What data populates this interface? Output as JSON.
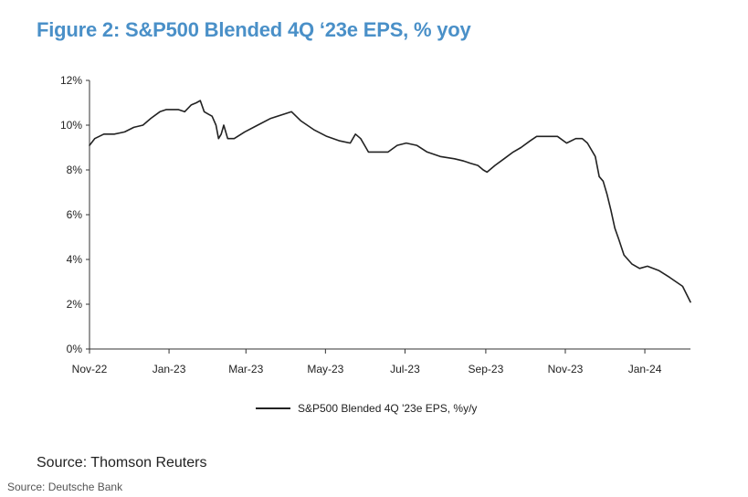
{
  "title": "Figure 2: S&P500 Blended 4Q ‘23e EPS, % yoy",
  "source_text": "Source: Thomson Reuters",
  "footer_text": "Source: Deutsche Bank",
  "colors": {
    "title": "#4a90c8",
    "line": "#222222",
    "axis": "#333333"
  },
  "chart_data": {
    "type": "line",
    "title": "Figure 2: S&P500 Blended 4Q ‘23e EPS, % yoy",
    "xlabel": "",
    "ylabel": "",
    "y_unit": "%",
    "ylim": [
      0,
      12
    ],
    "yticks": [
      0,
      2,
      4,
      6,
      8,
      10,
      12
    ],
    "ytick_labels": [
      "0%",
      "2%",
      "4%",
      "6%",
      "8%",
      "10%",
      "12%"
    ],
    "xlim": [
      "2022-11-01",
      "2024-02-05"
    ],
    "xticks": [
      "2022-11-01",
      "2023-01-01",
      "2023-03-01",
      "2023-05-01",
      "2023-07-01",
      "2023-09-01",
      "2023-11-01",
      "2024-01-01"
    ],
    "xtick_labels": [
      "Nov-22",
      "Jan-23",
      "Mar-23",
      "May-23",
      "Jul-23",
      "Sep-23",
      "Nov-23",
      "Jan-24"
    ],
    "grid": false,
    "legend": "bottom-center",
    "series": [
      {
        "name": "S&P500 Blended 4Q '23e EPS, %y/y",
        "points": [
          [
            "2022-11-01",
            9.1
          ],
          [
            "2022-11-05",
            9.4
          ],
          [
            "2022-11-12",
            9.6
          ],
          [
            "2022-11-20",
            9.6
          ],
          [
            "2022-11-28",
            9.7
          ],
          [
            "2022-12-05",
            9.9
          ],
          [
            "2022-12-12",
            10.0
          ],
          [
            "2022-12-18",
            10.3
          ],
          [
            "2022-12-25",
            10.6
          ],
          [
            "2022-12-30",
            10.7
          ],
          [
            "2023-01-08",
            10.7
          ],
          [
            "2023-01-13",
            10.6
          ],
          [
            "2023-01-18",
            10.9
          ],
          [
            "2023-01-22",
            11.0
          ],
          [
            "2023-01-25",
            11.1
          ],
          [
            "2023-01-28",
            10.6
          ],
          [
            "2023-01-31",
            10.5
          ],
          [
            "2023-02-03",
            10.4
          ],
          [
            "2023-02-06",
            10.0
          ],
          [
            "2023-02-08",
            9.4
          ],
          [
            "2023-02-10",
            9.6
          ],
          [
            "2023-02-12",
            10.0
          ],
          [
            "2023-02-15",
            9.4
          ],
          [
            "2023-02-20",
            9.4
          ],
          [
            "2023-02-28",
            9.7
          ],
          [
            "2023-03-10",
            10.0
          ],
          [
            "2023-03-20",
            10.3
          ],
          [
            "2023-04-05",
            10.6
          ],
          [
            "2023-04-12",
            10.2
          ],
          [
            "2023-04-22",
            9.8
          ],
          [
            "2023-05-02",
            9.5
          ],
          [
            "2023-05-12",
            9.3
          ],
          [
            "2023-05-20",
            9.2
          ],
          [
            "2023-05-24",
            9.6
          ],
          [
            "2023-05-28",
            9.4
          ],
          [
            "2023-06-01",
            9.0
          ],
          [
            "2023-06-03",
            8.8
          ],
          [
            "2023-06-10",
            8.8
          ],
          [
            "2023-06-18",
            8.8
          ],
          [
            "2023-06-25",
            9.1
          ],
          [
            "2023-07-02",
            9.2
          ],
          [
            "2023-07-10",
            9.1
          ],
          [
            "2023-07-18",
            8.8
          ],
          [
            "2023-07-28",
            8.6
          ],
          [
            "2023-08-08",
            8.5
          ],
          [
            "2023-08-15",
            8.4
          ],
          [
            "2023-08-20",
            8.3
          ],
          [
            "2023-08-26",
            8.2
          ],
          [
            "2023-08-30",
            8.0
          ],
          [
            "2023-09-02",
            7.9
          ],
          [
            "2023-09-08",
            8.2
          ],
          [
            "2023-09-15",
            8.5
          ],
          [
            "2023-09-22",
            8.8
          ],
          [
            "2023-09-28",
            9.0
          ],
          [
            "2023-10-05",
            9.3
          ],
          [
            "2023-10-10",
            9.5
          ],
          [
            "2023-10-18",
            9.5
          ],
          [
            "2023-10-26",
            9.5
          ],
          [
            "2023-11-02",
            9.2
          ],
          [
            "2023-11-09",
            9.4
          ],
          [
            "2023-11-14",
            9.4
          ],
          [
            "2023-11-18",
            9.2
          ],
          [
            "2023-11-24",
            8.6
          ],
          [
            "2023-11-27",
            7.7
          ],
          [
            "2023-11-30",
            7.5
          ],
          [
            "2023-12-03",
            6.9
          ],
          [
            "2023-12-06",
            6.2
          ],
          [
            "2023-12-09",
            5.4
          ],
          [
            "2023-12-12",
            4.9
          ],
          [
            "2023-12-16",
            4.2
          ],
          [
            "2023-12-22",
            3.8
          ],
          [
            "2023-12-28",
            3.6
          ],
          [
            "2024-01-03",
            3.7
          ],
          [
            "2024-01-12",
            3.5
          ],
          [
            "2024-01-20",
            3.2
          ],
          [
            "2024-01-30",
            2.8
          ],
          [
            "2024-02-05",
            2.1
          ]
        ]
      }
    ]
  }
}
